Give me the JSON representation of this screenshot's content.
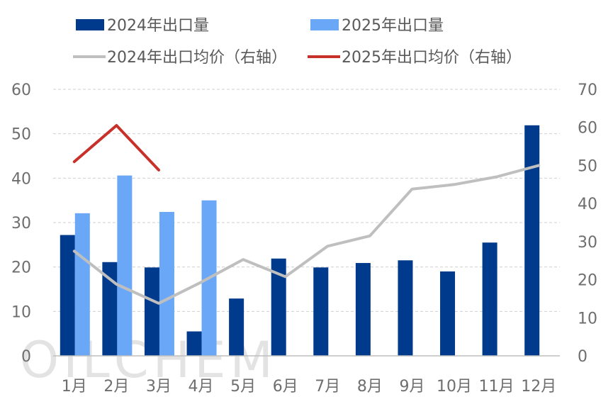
{
  "chart_data": {
    "type": "bar",
    "categories": [
      "1月",
      "2月",
      "3月",
      "4月",
      "5月",
      "6月",
      "7月",
      "8月",
      "9月",
      "10月",
      "11月",
      "12月"
    ],
    "series": [
      {
        "name": "2024年出口量",
        "kind": "bar",
        "axis": "left",
        "color": "#003a8c",
        "values": [
          27.2,
          21.1,
          19.9,
          5.5,
          12.9,
          21.9,
          19.9,
          20.9,
          21.5,
          19.0,
          25.5,
          51.9
        ]
      },
      {
        "name": "2025年出口量",
        "kind": "bar",
        "axis": "left",
        "color": "#6aa8f7",
        "values": [
          32.1,
          40.6,
          32.4,
          35.0,
          null,
          null,
          null,
          null,
          null,
          null,
          null,
          null
        ]
      },
      {
        "name": "2024年出口均价（右轴）",
        "kind": "line",
        "axis": "right",
        "color": "#bfbfbf",
        "values": [
          27.5,
          18.8,
          13.8,
          19.3,
          25.3,
          20.8,
          28.8,
          31.5,
          43.8,
          45.0,
          47.0,
          50.0
        ]
      },
      {
        "name": "2025年出口均价（右轴）",
        "kind": "line",
        "axis": "right",
        "color": "#c8302a",
        "values": [
          51.0,
          60.5,
          48.8,
          null,
          null,
          null,
          null,
          null,
          null,
          null,
          null,
          null
        ]
      }
    ],
    "ylim_left": [
      0,
      60
    ],
    "yticks_left": [
      "0",
      "10",
      "20",
      "30",
      "40",
      "50",
      "60"
    ],
    "ylim_right": [
      0,
      70
    ],
    "yticks_right": [
      "0",
      "10",
      "20",
      "30",
      "40",
      "50",
      "60",
      "70"
    ],
    "grid": true,
    "legend_position": "top"
  },
  "watermark": "OILCHEM"
}
